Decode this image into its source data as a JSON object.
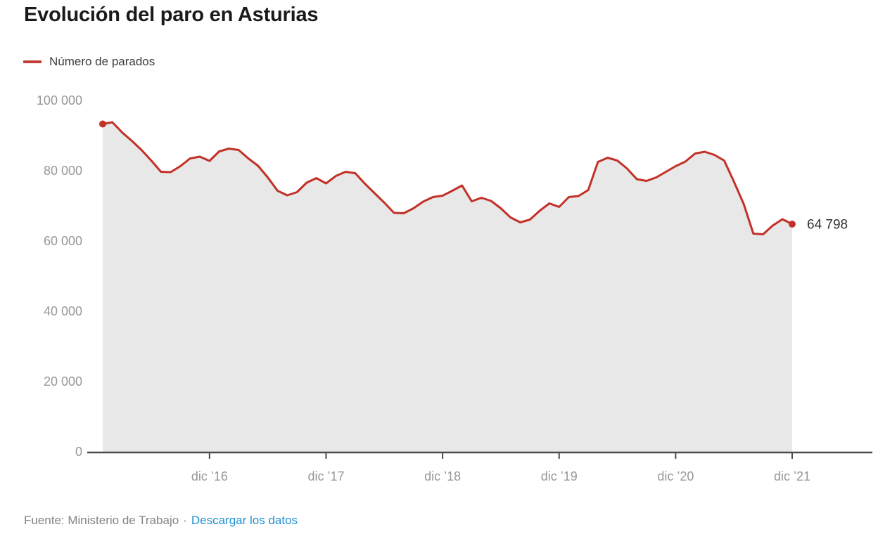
{
  "title": "Evolución del paro en Asturias",
  "legend": {
    "label": "Número de parados"
  },
  "footer": {
    "source_prefix": "Fuente: Ministerio de Trabajo",
    "separator": "·",
    "link_label": "Descargar los datos",
    "link_color": "#2191d0"
  },
  "colors": {
    "line": "#c23128",
    "legend_swatch": "#c23b35",
    "area": "#e8e8e8",
    "axis": "#4c4c4c",
    "axis_tick_label": "#989898",
    "end_label": "#333333",
    "background": "#ffffff"
  },
  "chart_data": {
    "type": "area",
    "title": "Evolución del paro en Asturias",
    "series_name": "Número de parados",
    "grid": false,
    "legend_position": "top-left",
    "ylim": [
      0,
      100000
    ],
    "last_value_label": "64 798",
    "y_ticks": [
      {
        "value": 100000,
        "label": "100 000"
      },
      {
        "value": 80000,
        "label": "80 000"
      },
      {
        "value": 60000,
        "label": "60 000"
      },
      {
        "value": 40000,
        "label": "40 000"
      },
      {
        "value": 20000,
        "label": "20 000"
      },
      {
        "value": 0,
        "label": "0"
      }
    ],
    "x_ticks": [
      {
        "index": 11,
        "label": "dic ’16"
      },
      {
        "index": 23,
        "label": "dic ’17"
      },
      {
        "index": 35,
        "label": "dic ’18"
      },
      {
        "index": 47,
        "label": "dic ’19"
      },
      {
        "index": 59,
        "label": "dic ’20"
      },
      {
        "index": 71,
        "label": "dic ’21"
      }
    ],
    "x": [
      "ene '16",
      "feb '16",
      "mar '16",
      "abr '16",
      "may '16",
      "jun '16",
      "jul '16",
      "ago '16",
      "sep '16",
      "oct '16",
      "nov '16",
      "dic '16",
      "ene '17",
      "feb '17",
      "mar '17",
      "abr '17",
      "may '17",
      "jun '17",
      "jul '17",
      "ago '17",
      "sep '17",
      "oct '17",
      "nov '17",
      "dic '17",
      "ene '18",
      "feb '18",
      "mar '18",
      "abr '18",
      "may '18",
      "jun '18",
      "jul '18",
      "ago '18",
      "sep '18",
      "oct '18",
      "nov '18",
      "dic '18",
      "ene '19",
      "feb '19",
      "mar '19",
      "abr '19",
      "may '19",
      "jun '19",
      "jul '19",
      "ago '19",
      "sep '19",
      "oct '19",
      "nov '19",
      "dic '19",
      "ene '20",
      "feb '20",
      "mar '20",
      "abr '20",
      "may '20",
      "jun '20",
      "jul '20",
      "ago '20",
      "sep '20",
      "oct '20",
      "nov '20",
      "dic '20",
      "ene '21",
      "feb '21",
      "mar '21",
      "abr '21",
      "may '21",
      "jun '21",
      "jul '21",
      "ago '21",
      "sep '21",
      "oct '21",
      "nov '21",
      "dic '21"
    ],
    "values": [
      93300,
      93800,
      90900,
      88500,
      85900,
      82900,
      79700,
      79600,
      81300,
      83500,
      84000,
      82800,
      85500,
      86300,
      85900,
      83500,
      81400,
      78100,
      74300,
      73000,
      73900,
      76600,
      77900,
      76400,
      78500,
      79700,
      79300,
      76300,
      73600,
      70900,
      68000,
      67900,
      69300,
      71200,
      72500,
      72900,
      74300,
      75800,
      71300,
      72300,
      71400,
      69300,
      66700,
      65300,
      66100,
      68600,
      70700,
      69700,
      72500,
      72800,
      74500,
      82500,
      83700,
      82900,
      80600,
      77600,
      77100,
      78100,
      79700,
      81300,
      82600,
      84900,
      85400,
      84500,
      82900,
      76900,
      70600,
      62100,
      61900,
      64400,
      66200,
      64798
    ]
  }
}
